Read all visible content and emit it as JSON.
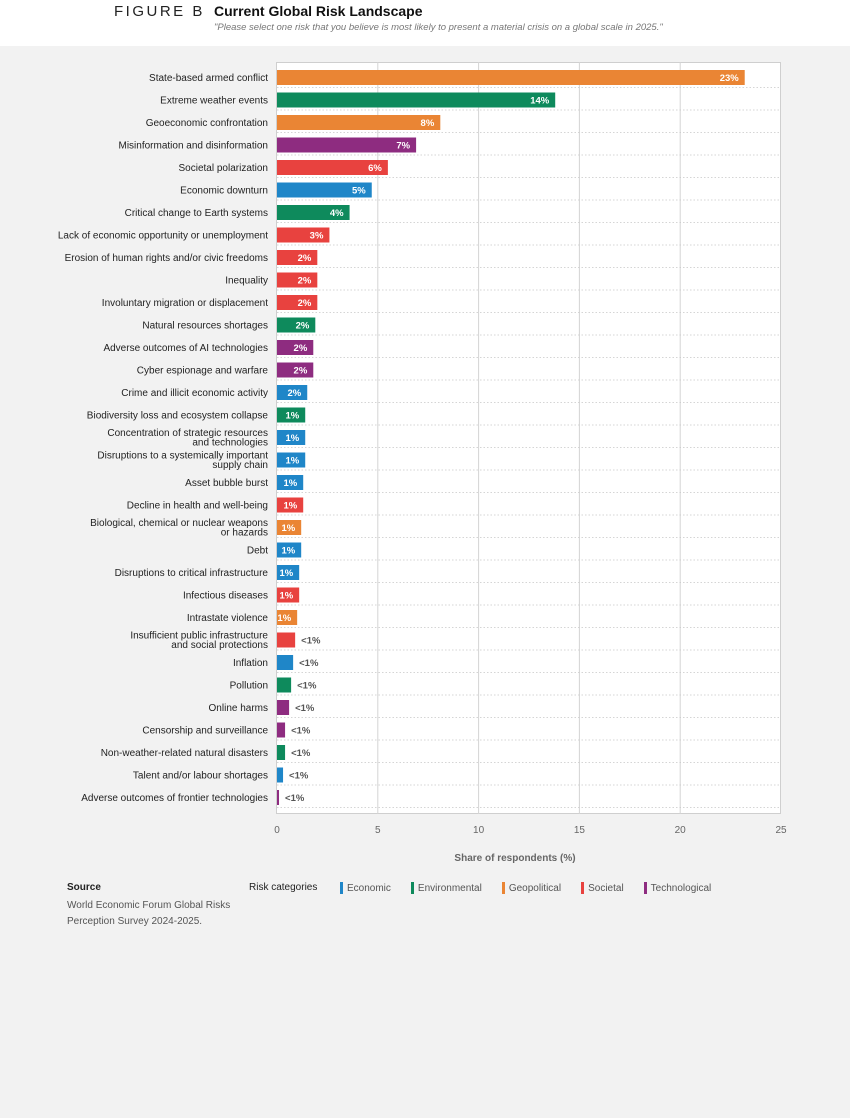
{
  "header": {
    "figure_label": "FIGURE B",
    "title": "Current Global Risk Landscape",
    "subtitle": "\"Please select one risk that you believe is most likely to present a material crisis on a global scale in 2025.\""
  },
  "chart_data": {
    "type": "bar",
    "orientation": "horizontal",
    "xlabel": "Share of respondents (%)",
    "xlim": [
      0,
      25
    ],
    "xticks": [
      0,
      5,
      10,
      15,
      20,
      25
    ],
    "grid": true,
    "colors": {
      "Economic": "#1f86c8",
      "Environmental": "#0e8a5c",
      "Geopolitical": "#ea8534",
      "Societal": "#e8423f",
      "Technological": "#8e2c80"
    },
    "bars": [
      {
        "label": [
          "State-based armed conflict"
        ],
        "value": 23.2,
        "text": "23%",
        "category": "Geopolitical"
      },
      {
        "label": [
          "Extreme weather events"
        ],
        "value": 13.8,
        "text": "14%",
        "category": "Environmental"
      },
      {
        "label": [
          "Geoeconomic confrontation"
        ],
        "value": 8.1,
        "text": "8%",
        "category": "Geopolitical"
      },
      {
        "label": [
          "Misinformation and disinformation"
        ],
        "value": 6.9,
        "text": "7%",
        "category": "Technological"
      },
      {
        "label": [
          "Societal polarization"
        ],
        "value": 5.5,
        "text": "6%",
        "category": "Societal"
      },
      {
        "label": [
          "Economic downturn"
        ],
        "value": 4.7,
        "text": "5%",
        "category": "Economic"
      },
      {
        "label": [
          "Critical change to Earth systems"
        ],
        "value": 3.6,
        "text": "4%",
        "category": "Environmental"
      },
      {
        "label": [
          "Lack of economic opportunity or unemployment"
        ],
        "value": 2.6,
        "text": "3%",
        "category": "Societal"
      },
      {
        "label": [
          "Erosion of human rights and/or civic freedoms"
        ],
        "value": 2.0,
        "text": "2%",
        "category": "Societal"
      },
      {
        "label": [
          "Inequality"
        ],
        "value": 2.0,
        "text": "2%",
        "category": "Societal"
      },
      {
        "label": [
          "Involuntary migration or displacement"
        ],
        "value": 2.0,
        "text": "2%",
        "category": "Societal"
      },
      {
        "label": [
          "Natural resources shortages"
        ],
        "value": 1.9,
        "text": "2%",
        "category": "Environmental"
      },
      {
        "label": [
          "Adverse outcomes of AI technologies"
        ],
        "value": 1.8,
        "text": "2%",
        "category": "Technological"
      },
      {
        "label": [
          "Cyber espionage and warfare"
        ],
        "value": 1.8,
        "text": "2%",
        "category": "Technological"
      },
      {
        "label": [
          "Crime and illicit economic activity"
        ],
        "value": 1.5,
        "text": "2%",
        "category": "Economic"
      },
      {
        "label": [
          "Biodiversity loss and ecosystem collapse"
        ],
        "value": 1.4,
        "text": "1%",
        "category": "Environmental"
      },
      {
        "label": [
          "Concentration of strategic resources",
          "and technologies"
        ],
        "value": 1.4,
        "text": "1%",
        "category": "Economic"
      },
      {
        "label": [
          "Disruptions to a systemically important",
          "supply chain"
        ],
        "value": 1.4,
        "text": "1%",
        "category": "Economic"
      },
      {
        "label": [
          "Asset bubble burst"
        ],
        "value": 1.3,
        "text": "1%",
        "category": "Economic"
      },
      {
        "label": [
          "Decline in health and well-being"
        ],
        "value": 1.3,
        "text": "1%",
        "category": "Societal"
      },
      {
        "label": [
          "Biological, chemical or nuclear weapons",
          "or hazards"
        ],
        "value": 1.2,
        "text": "1%",
        "category": "Geopolitical"
      },
      {
        "label": [
          "Debt"
        ],
        "value": 1.2,
        "text": "1%",
        "category": "Economic"
      },
      {
        "label": [
          "Disruptions to critical infrastructure"
        ],
        "value": 1.1,
        "text": "1%",
        "category": "Economic"
      },
      {
        "label": [
          "Infectious diseases"
        ],
        "value": 1.1,
        "text": "1%",
        "category": "Societal"
      },
      {
        "label": [
          "Intrastate violence"
        ],
        "value": 1.0,
        "text": "1%",
        "category": "Geopolitical"
      },
      {
        "label": [
          "Insufficient public infrastructure",
          "and social protections"
        ],
        "value": 0.9,
        "text": "<1%",
        "category": "Societal"
      },
      {
        "label": [
          "Inflation"
        ],
        "value": 0.8,
        "text": "<1%",
        "category": "Economic"
      },
      {
        "label": [
          "Pollution"
        ],
        "value": 0.7,
        "text": "<1%",
        "category": "Environmental"
      },
      {
        "label": [
          "Online harms"
        ],
        "value": 0.6,
        "text": "<1%",
        "category": "Technological"
      },
      {
        "label": [
          "Censorship and surveillance"
        ],
        "value": 0.4,
        "text": "<1%",
        "category": "Technological"
      },
      {
        "label": [
          "Non-weather-related natural disasters"
        ],
        "value": 0.4,
        "text": "<1%",
        "category": "Environmental"
      },
      {
        "label": [
          "Talent and/or labour shortages"
        ],
        "value": 0.3,
        "text": "<1%",
        "category": "Economic"
      },
      {
        "label": [
          "Adverse outcomes of frontier technologies"
        ],
        "value": 0.1,
        "text": "<1%",
        "category": "Technological"
      }
    ]
  },
  "footer": {
    "source_heading": "Source",
    "source_text": "World Economic Forum Global Risks Perception Survey 2024-2025.",
    "legend_heading": "Risk categories",
    "legend": [
      {
        "label": "Economic",
        "color": "#1f86c8"
      },
      {
        "label": "Environmental",
        "color": "#0e8a5c"
      },
      {
        "label": "Geopolitical",
        "color": "#ea8534"
      },
      {
        "label": "Societal",
        "color": "#e8423f"
      },
      {
        "label": "Technological",
        "color": "#8e2c80"
      }
    ]
  }
}
